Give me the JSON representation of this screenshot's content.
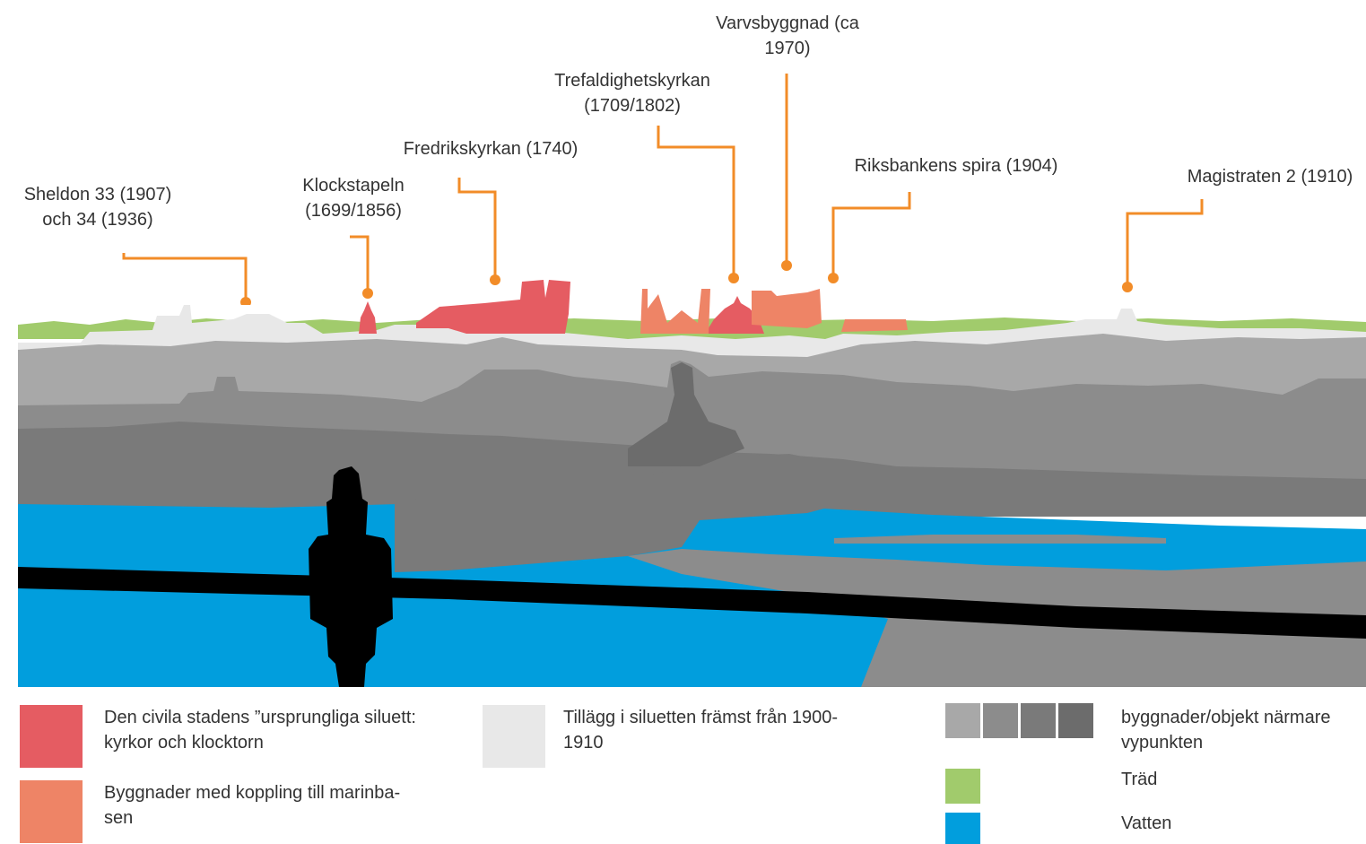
{
  "colors": {
    "original_silhouette": "#e55c62",
    "naval_buildings": "#ee8466",
    "additions_1900": "#e8e8e8",
    "near_gray_1": "#a8a8a8",
    "near_gray_2": "#8c8c8c",
    "near_gray_3": "#7a7a7a",
    "near_gray_4": "#6c6c6c",
    "trees": "#a1cb6c",
    "water": "#019edd",
    "leader": "#f28c28",
    "foreground": "#000000"
  },
  "callouts": {
    "sheldon": {
      "line1": "Sheldon 33 (1907)",
      "line2": "och 34 (1936)"
    },
    "klockstapeln": {
      "line1": "Klockstapeln",
      "line2": "(1699/1856)"
    },
    "fredrikskyrkan": {
      "line1": "Fredrikskyrkan (1740)"
    },
    "trefaldighetskyrkan": {
      "line1": "Trefaldighetskyrkan",
      "line2": "(1709/1802)"
    },
    "varvsbyggnad": {
      "line1": "Varvsbyggnad (ca",
      "line2": "1970)"
    },
    "riksbanken": {
      "line1": "Riksbankens spira (1904)"
    },
    "magistraten": {
      "line1": "Magistraten 2 (1910)"
    }
  },
  "legend": {
    "original": {
      "line1": "Den civila stadens ”ursprungliga siluett:",
      "line2": "kyrkor och klocktorn"
    },
    "naval": {
      "line1": "Byggnader med koppling till marinba-",
      "line2": "sen"
    },
    "additions": {
      "line1": "Tillägg i siluetten främst från 1900-",
      "line2": "1910"
    },
    "near": {
      "line1": "byggnader/objekt närmare",
      "line2": "vypunkten"
    },
    "trees": {
      "line1": "Träd"
    },
    "water": {
      "line1": "Vatten"
    }
  }
}
